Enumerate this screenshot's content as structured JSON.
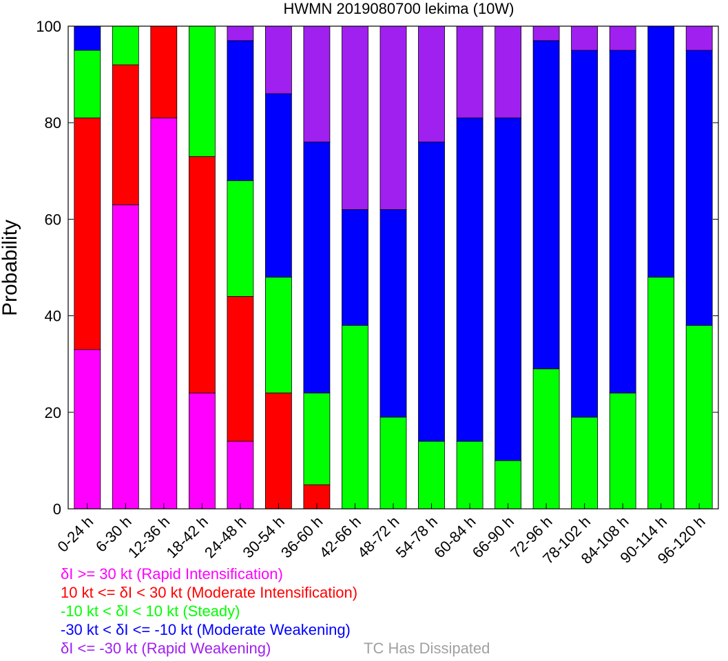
{
  "chart_data": {
    "type": "bar",
    "stacked": true,
    "title": "HWMN 2019080700 lekima (10W)",
    "ylabel": "Probability",
    "xlabel": "",
    "ylim": [
      0,
      100
    ],
    "yticks": [
      "0",
      "20",
      "40",
      "60",
      "80",
      "100"
    ],
    "grid": false,
    "legend_position": "bottom-left",
    "categories": [
      "0-24 h",
      "6-30 h",
      "12-36 h",
      "18-42 h",
      "24-48 h",
      "30-54 h",
      "36-60 h",
      "42-66 h",
      "48-72 h",
      "54-78 h",
      "60-84 h",
      "66-90 h",
      "72-96 h",
      "78-102 h",
      "84-108 h",
      "90-114 h",
      "96-120 h"
    ],
    "series": [
      {
        "key": "ri",
        "color": "#ff00ff",
        "values": [
          33,
          63,
          81,
          24,
          14,
          0,
          0,
          0,
          0,
          0,
          0,
          0,
          0,
          0,
          0,
          0,
          0
        ]
      },
      {
        "key": "mi",
        "color": "#ff0000",
        "values": [
          48,
          29,
          19,
          49,
          30,
          24,
          5,
          0,
          0,
          0,
          0,
          0,
          0,
          0,
          0,
          0,
          0
        ]
      },
      {
        "key": "st",
        "color": "#00ff00",
        "values": [
          14,
          8,
          0,
          27,
          24,
          24,
          19,
          38,
          19,
          14,
          14,
          10,
          29,
          19,
          24,
          48,
          38
        ]
      },
      {
        "key": "mw",
        "color": "#0000ff",
        "values": [
          5,
          0,
          0,
          0,
          29,
          38,
          52,
          24,
          43,
          62,
          67,
          71,
          68,
          76,
          71,
          52,
          57
        ]
      },
      {
        "key": "rw",
        "color": "#a020f0",
        "values": [
          0,
          0,
          0,
          0,
          3,
          14,
          24,
          38,
          38,
          24,
          19,
          19,
          3,
          5,
          5,
          0,
          5
        ]
      }
    ]
  },
  "legend": {
    "items": [
      {
        "text": "δI >= 30 kt (Rapid Intensification)",
        "color": "#ff00ff"
      },
      {
        "text": "10 kt <= δI < 30 kt (Moderate Intensification)",
        "color": "#ff0000"
      },
      {
        "text": "-10 kt < δI < 10 kt (Steady)",
        "color": "#00ff00"
      },
      {
        "text": "-30 kt < δI <= -10 kt (Moderate Weakening)",
        "color": "#0000ff"
      },
      {
        "text": "δI <= -30 kt (Rapid Weakening)",
        "color": "#a020f0"
      }
    ],
    "dissipated": {
      "text": "TC Has Dissipated",
      "color": "#a0a0a0"
    }
  }
}
